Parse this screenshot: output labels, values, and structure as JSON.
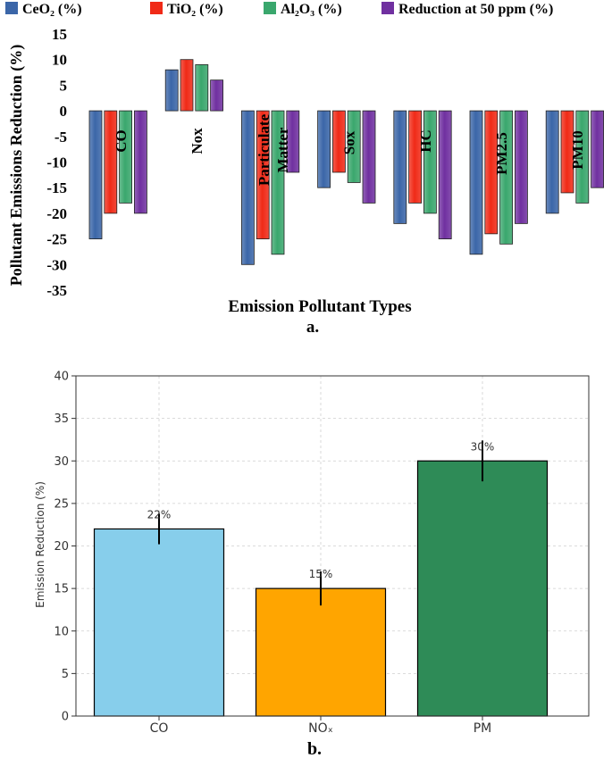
{
  "chart_data": [
    {
      "type": "bar",
      "panel_label": "a.",
      "xlabel": "Emission Pollutant Types",
      "ylabel": "Pollutant Emissions Reduction (%)",
      "ylim": [
        -35,
        15
      ],
      "yticks": [
        15,
        10,
        5,
        0,
        -5,
        -10,
        -15,
        -20,
        -25,
        -30,
        -35
      ],
      "categories": [
        "CO",
        "Nox",
        "Particulate Matter",
        "Sox",
        "HC",
        "PM2.5",
        "PM10"
      ],
      "category_label_lines": [
        [
          "CO"
        ],
        [
          "Nox"
        ],
        [
          "Particulate",
          "Matter"
        ],
        [
          "Sox"
        ],
        [
          "HC"
        ],
        [
          "PM2.5"
        ],
        [
          "PM10"
        ]
      ],
      "series": [
        {
          "name": "CeO₂ (%)",
          "color": "#3b66a8",
          "values": [
            -25,
            8,
            -30,
            -15,
            -22,
            -28,
            -20
          ]
        },
        {
          "name": "TiO₂ (%)",
          "color": "#f02a17",
          "values": [
            -20,
            10,
            -25,
            -12,
            -18,
            -24,
            -16
          ]
        },
        {
          "name": "Al₂O₃ (%)",
          "color": "#3aa76d",
          "values": [
            -18,
            9,
            -28,
            -14,
            -20,
            -26,
            -18
          ]
        },
        {
          "name": "Reduction at 50 ppm (%)",
          "color": "#7030a0",
          "values": [
            -20,
            6,
            -12,
            -18,
            -25,
            -22,
            -15
          ]
        }
      ],
      "legend_position": "top",
      "grid": false
    },
    {
      "type": "bar",
      "panel_label": "b.",
      "xlabel": "",
      "ylabel": "Emission Reduction (%)",
      "ylim": [
        0,
        40
      ],
      "yticks": [
        0,
        5,
        10,
        15,
        20,
        25,
        30,
        35,
        40
      ],
      "categories": [
        "CO",
        "NOₓ",
        "PM"
      ],
      "values": [
        22,
        15,
        30
      ],
      "error": [
        1.8,
        2.0,
        2.4
      ],
      "data_labels": [
        "22%",
        "15%",
        "30%"
      ],
      "colors": [
        "#87ceeb",
        "#ffa500",
        "#2e8b57"
      ],
      "grid": true
    }
  ]
}
